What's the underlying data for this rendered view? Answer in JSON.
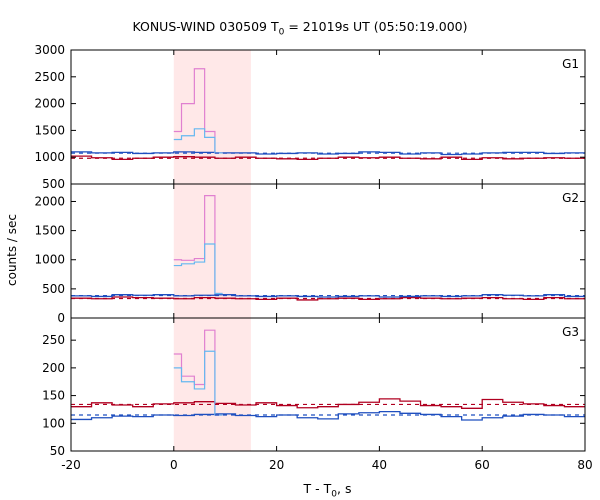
{
  "chart_data": {
    "type": "step",
    "title_prefix": "KONUS-WIND 030509 T",
    "title_sub": "0",
    "title_suffix": " = 21019s UT (05:50:19.000)",
    "xlabel_prefix": "T - T",
    "xlabel_sub": "0",
    "xlabel_suffix": ", s",
    "ylabel": "counts / sec",
    "xlim": [
      -20,
      80
    ],
    "xticks": [
      -20,
      0,
      20,
      40,
      60,
      80
    ],
    "highlight_interval": [
      0,
      15
    ],
    "colors": {
      "highlight": "#ffe8e8",
      "blue": "#1f4fbf",
      "red": "#b00020",
      "cyan": "#66b8f0",
      "pink": "#e080d0"
    },
    "panels": [
      {
        "label": "G1",
        "ylim": [
          500,
          3000
        ],
        "yticks": [
          500,
          1000,
          1500,
          2000,
          2500,
          3000
        ],
        "blue_bg": {
          "x": [
            -20,
            -16,
            -12,
            -8,
            -4,
            0,
            4,
            8,
            12,
            16,
            20,
            24,
            28,
            32,
            36,
            40,
            44,
            48,
            52,
            56,
            60,
            64,
            68,
            72,
            76,
            80
          ],
          "y": [
            1100,
            1080,
            1090,
            1070,
            1080,
            1100,
            1090,
            1080,
            1080,
            1060,
            1070,
            1080,
            1060,
            1070,
            1100,
            1090,
            1060,
            1080,
            1050,
            1060,
            1080,
            1090,
            1090,
            1070,
            1080
          ]
        },
        "red_bg": {
          "x": [
            -20,
            -16,
            -12,
            -8,
            -4,
            0,
            4,
            8,
            12,
            16,
            20,
            24,
            28,
            32,
            36,
            40,
            44,
            48,
            52,
            56,
            60,
            64,
            68,
            72,
            76,
            80
          ],
          "y": [
            1020,
            990,
            960,
            980,
            1000,
            1010,
            1000,
            980,
            1000,
            980,
            970,
            960,
            980,
            1000,
            990,
            1000,
            980,
            970,
            1000,
            960,
            990,
            970,
            980,
            990,
            980
          ]
        },
        "blue_fit": 1075,
        "red_fit": 980,
        "cyan_burst": {
          "x": [
            0,
            1.5,
            4,
            6,
            8,
            9.5
          ],
          "y": [
            1330,
            1400,
            1530,
            1370,
            1080
          ]
        },
        "pink_burst": {
          "x": [
            0,
            1.5,
            4,
            6,
            8,
            9.5
          ],
          "y": [
            1480,
            2000,
            2650,
            1480,
            1080
          ]
        }
      },
      {
        "label": "G2",
        "ylim": [
          0,
          2300
        ],
        "yticks": [
          0,
          500,
          1000,
          1500,
          2000
        ],
        "blue_bg": {
          "x": [
            -20,
            -16,
            -12,
            -8,
            -4,
            0,
            4,
            8,
            12,
            16,
            20,
            24,
            28,
            32,
            36,
            40,
            44,
            48,
            52,
            56,
            60,
            64,
            68,
            72,
            76,
            80
          ],
          "y": [
            380,
            370,
            400,
            390,
            400,
            380,
            390,
            400,
            380,
            370,
            380,
            370,
            360,
            370,
            380,
            360,
            370,
            380,
            370,
            380,
            400,
            390,
            380,
            400,
            370
          ]
        },
        "red_bg": {
          "x": [
            -20,
            -16,
            -12,
            -8,
            -4,
            0,
            4,
            8,
            12,
            16,
            20,
            24,
            28,
            32,
            36,
            40,
            44,
            48,
            52,
            56,
            60,
            64,
            68,
            72,
            76,
            80
          ],
          "y": [
            340,
            330,
            360,
            350,
            340,
            330,
            350,
            340,
            330,
            320,
            340,
            310,
            330,
            340,
            320,
            330,
            350,
            340,
            330,
            340,
            350,
            330,
            320,
            350,
            330
          ]
        },
        "blue_fit": 385,
        "red_fit": 335,
        "cyan_burst": {
          "x": [
            0,
            1.5,
            4,
            6,
            8,
            9.5
          ],
          "y": [
            900,
            930,
            960,
            1270,
            420
          ]
        },
        "pink_burst": {
          "x": [
            0,
            1.5,
            4,
            6,
            8,
            9.5
          ],
          "y": [
            1000,
            990,
            1020,
            2100,
            420
          ]
        }
      },
      {
        "label": "G3",
        "ylim": [
          50,
          290
        ],
        "yticks": [
          50,
          100,
          150,
          200,
          250
        ],
        "blue_bg": {
          "x": [
            -20,
            -16,
            -12,
            -8,
            -4,
            0,
            4,
            8,
            12,
            16,
            20,
            24,
            28,
            32,
            36,
            40,
            44,
            48,
            52,
            56,
            60,
            64,
            68,
            72,
            76,
            80
          ],
          "y": [
            107,
            110,
            113,
            112,
            115,
            114,
            116,
            117,
            114,
            112,
            115,
            110,
            108,
            117,
            119,
            121,
            118,
            116,
            112,
            106,
            110,
            113,
            116,
            115,
            112
          ]
        },
        "red_bg": {
          "x": [
            -20,
            -16,
            -12,
            -8,
            -4,
            0,
            4,
            8,
            12,
            16,
            20,
            24,
            28,
            32,
            36,
            40,
            44,
            48,
            52,
            56,
            60,
            64,
            68,
            72,
            76,
            80
          ],
          "y": [
            130,
            137,
            133,
            130,
            135,
            137,
            139,
            136,
            133,
            137,
            132,
            128,
            130,
            134,
            138,
            144,
            140,
            132,
            130,
            127,
            143,
            138,
            135,
            132,
            130
          ]
        },
        "blue_fit": 115,
        "red_fit": 134,
        "cyan_burst": {
          "x": [
            0,
            1.5,
            4,
            6,
            8,
            9.5
          ],
          "y": [
            200,
            175,
            162,
            230,
            115
          ]
        },
        "pink_burst": {
          "x": [
            0,
            1.5,
            4,
            6,
            8,
            9.5
          ],
          "y": [
            225,
            185,
            170,
            268,
            115
          ]
        }
      }
    ]
  }
}
